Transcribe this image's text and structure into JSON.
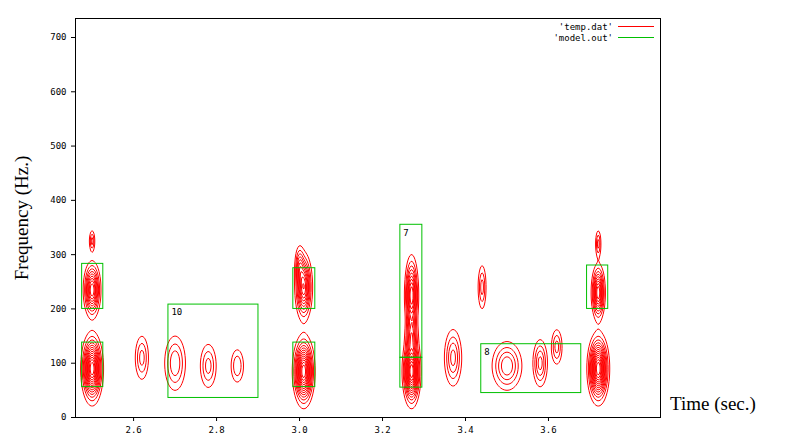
{
  "chart_data": {
    "type": "contour",
    "xlabel": "Time (sec.)",
    "ylabel": "Frequency (Hz.)",
    "xlim": [
      2.46,
      3.87
    ],
    "xticks": [
      2.6,
      2.8,
      3,
      3.2,
      3.4,
      3.6
    ],
    "ylim": [
      0,
      735
    ],
    "yticks": [
      0,
      100,
      200,
      300,
      400,
      500,
      600,
      700
    ],
    "legend": "top-right",
    "series": [
      {
        "name": "'temp.dat'",
        "color": "#ff0000",
        "type": "contour",
        "values": [
          {
            "x": 2.5,
            "y": 235,
            "sx": 0.01,
            "sy": 25,
            "level": 1.0
          },
          {
            "x": 2.5,
            "y": 325,
            "sx": 0.004,
            "sy": 12,
            "level": 0.35
          },
          {
            "x": 2.5,
            "y": 90,
            "sx": 0.012,
            "sy": 30,
            "level": 1.4
          },
          {
            "x": 2.62,
            "y": 110,
            "sx": 0.01,
            "sy": 25,
            "level": 0.35
          },
          {
            "x": 2.7,
            "y": 100,
            "sx": 0.015,
            "sy": 30,
            "level": 0.4
          },
          {
            "x": 2.78,
            "y": 95,
            "sx": 0.012,
            "sy": 25,
            "level": 0.35
          },
          {
            "x": 2.85,
            "y": 95,
            "sx": 0.01,
            "sy": 20,
            "level": 0.3
          },
          {
            "x": 3.01,
            "y": 240,
            "sx": 0.01,
            "sy": 30,
            "level": 1.0
          },
          {
            "x": 3.01,
            "y": 85,
            "sx": 0.012,
            "sy": 30,
            "level": 1.4
          },
          {
            "x": 3.0,
            "y": 280,
            "sx": 0.006,
            "sy": 20,
            "level": 0.4
          },
          {
            "x": 3.27,
            "y": 225,
            "sx": 0.008,
            "sy": 35,
            "level": 1.0
          },
          {
            "x": 3.27,
            "y": 85,
            "sx": 0.01,
            "sy": 30,
            "level": 1.4
          },
          {
            "x": 3.27,
            "y": 150,
            "sx": 0.008,
            "sy": 20,
            "level": 0.5
          },
          {
            "x": 3.37,
            "y": 110,
            "sx": 0.012,
            "sy": 30,
            "level": 0.45
          },
          {
            "x": 3.44,
            "y": 240,
            "sx": 0.006,
            "sy": 25,
            "level": 0.35
          },
          {
            "x": 3.5,
            "y": 95,
            "sx": 0.02,
            "sy": 25,
            "level": 0.5
          },
          {
            "x": 3.58,
            "y": 100,
            "sx": 0.01,
            "sy": 25,
            "level": 0.45
          },
          {
            "x": 3.62,
            "y": 130,
            "sx": 0.008,
            "sy": 20,
            "level": 0.35
          },
          {
            "x": 3.72,
            "y": 230,
            "sx": 0.008,
            "sy": 25,
            "level": 1.0
          },
          {
            "x": 3.72,
            "y": 90,
            "sx": 0.012,
            "sy": 30,
            "level": 1.4
          },
          {
            "x": 3.72,
            "y": 320,
            "sx": 0.004,
            "sy": 15,
            "level": 0.35
          }
        ]
      },
      {
        "name": "'model.out'",
        "color": "#00c000",
        "type": "rect",
        "values": [
          {
            "x": [
              2.476,
              2.527
            ],
            "y": [
              200,
              283
            ]
          },
          {
            "x": [
              2.476,
              2.527
            ],
            "y": [
              56,
              138
            ]
          },
          {
            "x": [
              2.684,
              2.901
            ],
            "y": [
              36,
              208
            ],
            "label": "10"
          },
          {
            "x": [
              2.985,
              3.038
            ],
            "y": [
              200,
              275
            ]
          },
          {
            "x": [
              2.985,
              3.038
            ],
            "y": [
              56,
              138
            ]
          },
          {
            "x": [
              3.243,
              3.296
            ],
            "y": [
              110,
              355
            ],
            "label": "7"
          },
          {
            "x": [
              3.243,
              3.296
            ],
            "y": [
              55,
              110
            ]
          },
          {
            "x": [
              3.438,
              3.679
            ],
            "y": [
              45,
              135
            ],
            "label": "8"
          },
          {
            "x": [
              3.693,
              3.744
            ],
            "y": [
              200,
              280
            ]
          }
        ]
      }
    ]
  }
}
